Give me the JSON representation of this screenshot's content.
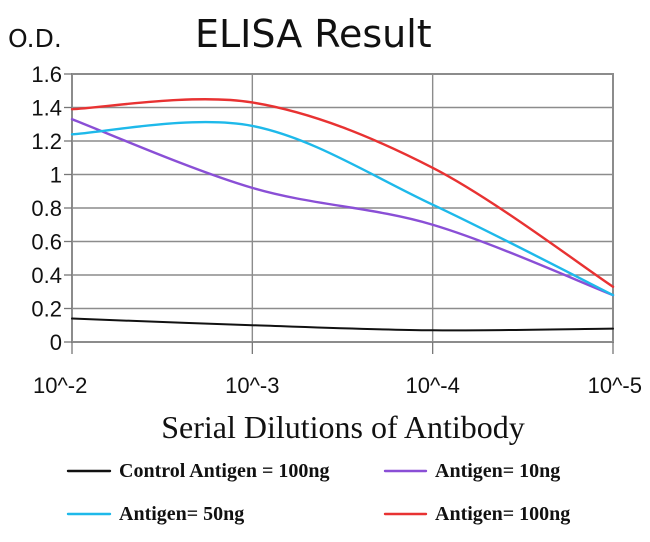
{
  "chart_data": {
    "type": "line",
    "title": "ELISA Result",
    "ylabel": "O.D.",
    "xlabel": "Serial Dilutions of Antibody",
    "categories": [
      "10^-2",
      "10^-3",
      "10^-4",
      "10^-5"
    ],
    "x_tick_labels": [
      "10^-2",
      "10^-3",
      "10^-4",
      "10^-5"
    ],
    "y_tick_labels": [
      "0",
      "0.2",
      "0.4",
      "0.6",
      "0.8",
      "1",
      "1.2",
      "1.4",
      "1.6"
    ],
    "ylim": [
      0,
      1.6
    ],
    "grid": true,
    "legend_position": "bottom",
    "series": [
      {
        "name": "Control Antigen = 100ng",
        "color": "#111111",
        "values": [
          0.14,
          0.1,
          0.07,
          0.08
        ]
      },
      {
        "name": "Antigen= 10ng",
        "color": "#8a4fd6",
        "values": [
          1.33,
          0.92,
          0.7,
          0.28
        ]
      },
      {
        "name": "Antigen= 50ng",
        "color": "#1eb9ea",
        "values": [
          1.24,
          1.29,
          0.82,
          0.28
        ]
      },
      {
        "name": "Antigen= 100ng",
        "color": "#e83232",
        "values": [
          1.39,
          1.43,
          1.04,
          0.33
        ]
      }
    ]
  }
}
